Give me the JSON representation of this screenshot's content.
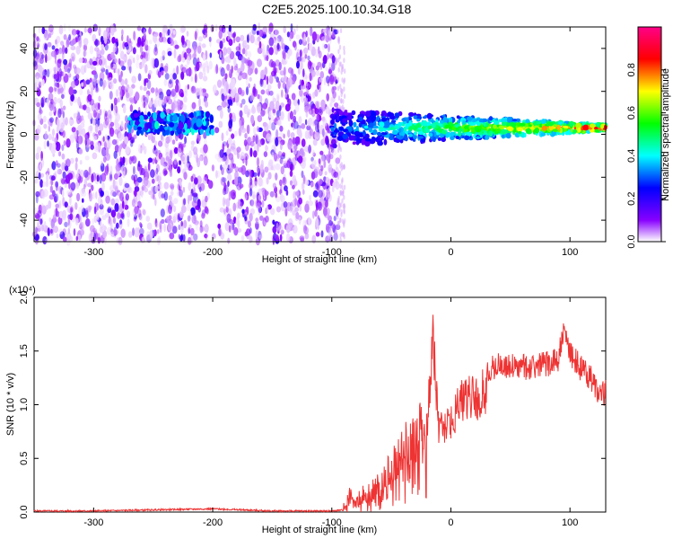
{
  "title": "C2E5.2025.100.10.34.G18",
  "chart_data": [
    {
      "type": "heatmap",
      "xlabel": "Height of straight line (km)",
      "ylabel": "Frequency (Hz)",
      "xlim": [
        -350,
        130
      ],
      "ylim": [
        -50,
        50
      ],
      "x_ticks": [
        -300,
        -200,
        -100,
        0,
        100
      ],
      "y_ticks": [
        -40,
        -20,
        0,
        20,
        40
      ],
      "colorbar": {
        "label": "Normalized spectral amplitude",
        "range": [
          0,
          1
        ],
        "ticks": [
          "0.0",
          "0.2",
          "0.4",
          "0.6",
          "0.8"
        ]
      },
      "colormap": [
        "#ffffff",
        "#8800ff",
        "#0000ff",
        "#00ffff",
        "#00ff00",
        "#ffff00",
        "#ff0000",
        "#ff0088"
      ],
      "features": {
        "noise_region_x": [
          -350,
          -95
        ],
        "clear_region_x": [
          -205,
          -195
        ],
        "signal_segment_1": {
          "x": [
            -270,
            -200
          ],
          "freq": 5
        },
        "signal_segment_2": {
          "x": [
            -100,
            130
          ],
          "freq": 3
        }
      }
    },
    {
      "type": "line",
      "xlabel": "Height of straight line (km)",
      "ylabel": "SNR (10 * v/v)",
      "y_exponent": "(x10⁴)",
      "xlim": [
        -350,
        130
      ],
      "ylim": [
        0,
        2.0
      ],
      "x_ticks": [
        -300,
        -200,
        -100,
        0,
        100
      ],
      "y_ticks": [
        "0.0",
        "0.5",
        "1.0",
        "1.5",
        "2.0"
      ],
      "color": "#ee3333",
      "series": [
        {
          "x": [
            -350,
            -300,
            -250,
            -200,
            -150,
            -100,
            -90,
            -85,
            -80,
            -70,
            -60,
            -50,
            -40,
            -30,
            -20,
            -15,
            -10,
            0,
            10,
            20,
            30,
            40,
            50,
            60,
            70,
            80,
            90,
            95,
            100,
            110,
            120,
            125,
            130
          ],
          "values": [
            0.01,
            0.01,
            0.02,
            0.03,
            0.01,
            0.01,
            0.02,
            0.15,
            0.05,
            0.25,
            0.3,
            0.6,
            0.8,
            0.9,
            1.0,
            1.9,
            0.9,
            1.05,
            1.25,
            1.3,
            1.35,
            1.4,
            1.38,
            1.37,
            1.38,
            1.4,
            1.45,
            1.7,
            1.5,
            1.35,
            1.25,
            1.1,
            1.15
          ]
        }
      ]
    }
  ]
}
